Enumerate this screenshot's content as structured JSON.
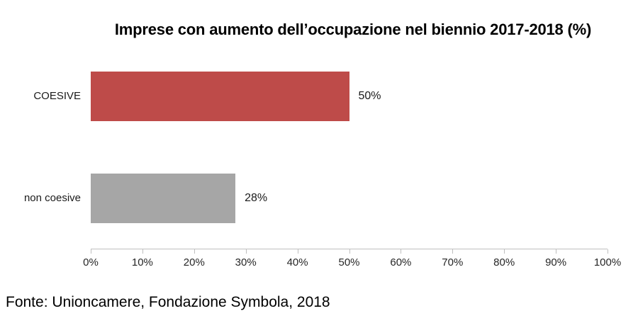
{
  "source_note": "Fonte: Unioncamere, Fondazione Symbola, 2018",
  "chart_data": {
    "type": "bar",
    "orientation": "horizontal",
    "title": "Imprese con aumento dell’occupazione nel biennio 2017-2018 (%)",
    "categories": [
      "COESIVE",
      "non coesive"
    ],
    "values": [
      50,
      28
    ],
    "value_labels": [
      "50%",
      "28%"
    ],
    "bar_colors": [
      "#be4b49",
      "#a6a6a6"
    ],
    "xlabel": "",
    "ylabel": "",
    "xlim": [
      0,
      100
    ],
    "x_ticks": [
      "0%",
      "10%",
      "20%",
      "30%",
      "40%",
      "50%",
      "60%",
      "70%",
      "80%",
      "90%",
      "100%"
    ],
    "grid": false,
    "legend": false,
    "axis_color": "#bfbfbf",
    "text_color": "#1a1a1a"
  }
}
